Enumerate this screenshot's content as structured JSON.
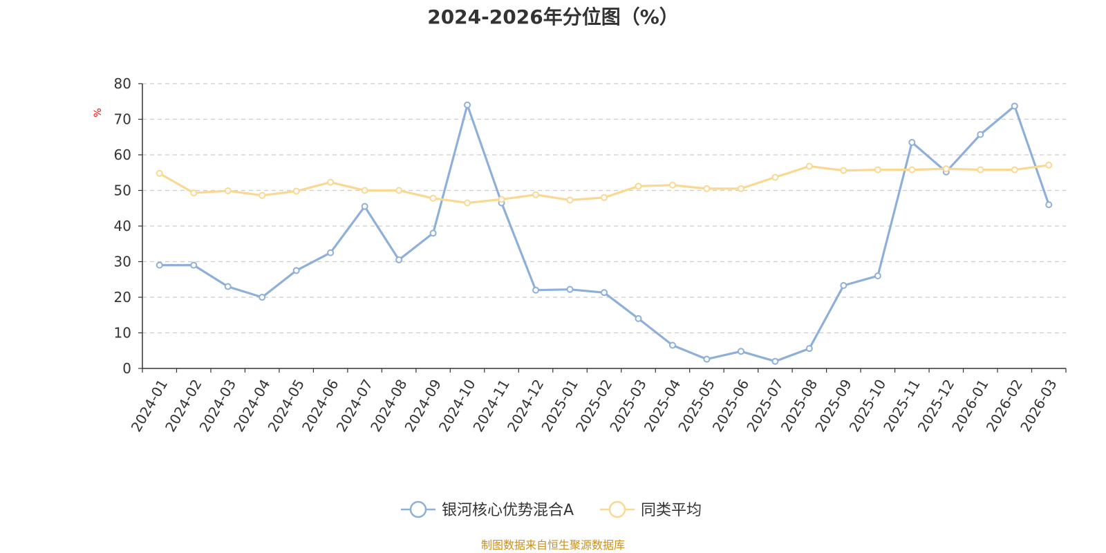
{
  "chart_data": {
    "type": "line",
    "title": "2024-2026年分位图（%）",
    "ylabel": "%",
    "xlabel": "",
    "ylim": [
      0,
      80
    ],
    "yticks": [
      0,
      10,
      20,
      30,
      40,
      50,
      60,
      70,
      80
    ],
    "grid": true,
    "legend_position": "bottom-center",
    "categories": [
      "2024-01",
      "2024-02",
      "2024-03",
      "2024-04",
      "2024-05",
      "2024-06",
      "2024-07",
      "2024-08",
      "2024-09",
      "2024-10",
      "2024-11",
      "2024-12",
      "2025-01",
      "2025-02",
      "2025-03",
      "2025-04",
      "2025-05",
      "2025-06",
      "2025-07",
      "2025-08",
      "2025-09",
      "2025-10",
      "2025-11",
      "2025-12",
      "2026-01",
      "2026-02",
      "2026-03"
    ],
    "series": [
      {
        "name": "银河核心优势混合A",
        "color": "#8eafd9",
        "values": [
          29,
          29,
          23,
          20,
          27.5,
          32.5,
          45.5,
          30.5,
          38,
          74,
          46.5,
          22,
          22.2,
          21.3,
          14,
          6.5,
          2.6,
          4.8,
          2,
          5.6,
          23.3,
          26,
          63.5,
          55.2,
          65.7,
          73.7,
          46
        ]
      },
      {
        "name": "同类平均",
        "color": "#fad892",
        "values": [
          54.8,
          49.3,
          49.9,
          48.6,
          49.8,
          52.3,
          50,
          50,
          47.8,
          46.5,
          47.5,
          48.8,
          47.3,
          48,
          51.2,
          51.5,
          50.5,
          50.5,
          53.7,
          56.8,
          55.6,
          55.8,
          55.8,
          56.1,
          55.8,
          55.8,
          57.1
        ]
      }
    ]
  },
  "source_text": "制图数据来自恒生聚源数据库"
}
